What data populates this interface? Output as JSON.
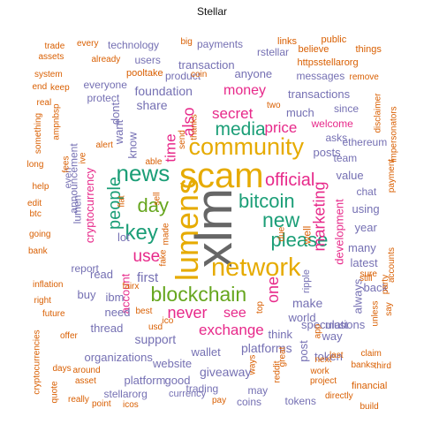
{
  "title": "Stellar",
  "colors": {
    "orange": "#d95f02",
    "green": "#66a61e",
    "purple": "#7570b3",
    "pink": "#e7298a",
    "gray": "#666666",
    "gold": "#e6ab02",
    "teal": "#1b9e77"
  },
  "words": [
    {
      "text": "xlm",
      "color": "gray"
    },
    {
      "text": "scam",
      "color": "gold"
    },
    {
      "text": "community",
      "color": "gold"
    },
    {
      "text": "lumens",
      "color": "gold"
    },
    {
      "text": "network",
      "color": "gold"
    },
    {
      "text": "blockchain",
      "color": "green"
    },
    {
      "text": "news",
      "color": "teal"
    },
    {
      "text": "please",
      "color": "teal"
    },
    {
      "text": "bitcoin",
      "color": "teal"
    },
    {
      "text": "new",
      "color": "teal"
    },
    {
      "text": "media",
      "color": "teal"
    },
    {
      "text": "day",
      "color": "green"
    },
    {
      "text": "key",
      "color": "teal"
    },
    {
      "text": "people",
      "color": "teal"
    },
    {
      "text": "exchange",
      "color": "pink"
    },
    {
      "text": "official",
      "color": "pink"
    },
    {
      "text": "marketing",
      "color": "pink"
    },
    {
      "text": "secret",
      "color": "pink"
    },
    {
      "text": "use",
      "color": "pink"
    },
    {
      "text": "never",
      "color": "pink"
    },
    {
      "text": "one",
      "color": "pink"
    },
    {
      "text": "also",
      "color": "pink"
    },
    {
      "text": "money",
      "color": "pink"
    },
    {
      "text": "price",
      "color": "pink"
    },
    {
      "text": "time",
      "color": "pink"
    },
    {
      "text": "see",
      "color": "pink"
    },
    {
      "text": "cryptocurrency",
      "color": "pink"
    },
    {
      "text": "development",
      "color": "pink"
    },
    {
      "text": "account",
      "color": "pink"
    },
    {
      "text": "make",
      "color": "purple"
    },
    {
      "text": "foundation",
      "color": "purple"
    },
    {
      "text": "transaction",
      "color": "purple"
    },
    {
      "text": "wallet",
      "color": "purple"
    },
    {
      "text": "want",
      "color": "purple"
    },
    {
      "text": "know",
      "color": "purple"
    },
    {
      "text": "first",
      "color": "purple"
    },
    {
      "text": "share",
      "color": "purple"
    },
    {
      "text": "platforms",
      "color": "purple"
    },
    {
      "text": "giveaway",
      "color": "purple"
    },
    {
      "text": "support",
      "color": "purple"
    },
    {
      "text": "posts",
      "color": "purple"
    },
    {
      "text": "value",
      "color": "purple"
    },
    {
      "text": "think",
      "color": "purple"
    },
    {
      "text": "world",
      "color": "purple"
    },
    {
      "text": "read",
      "color": "purple"
    },
    {
      "text": "anyone",
      "color": "purple"
    },
    {
      "text": "much",
      "color": "purple"
    },
    {
      "text": "website",
      "color": "purple"
    },
    {
      "text": "transactions",
      "color": "purple"
    },
    {
      "text": "organizations",
      "color": "purple"
    },
    {
      "text": "buy",
      "color": "purple"
    },
    {
      "text": "need",
      "color": "purple"
    },
    {
      "text": "ibm",
      "color": "purple"
    },
    {
      "text": "platform",
      "color": "purple"
    },
    {
      "text": "year",
      "color": "purple"
    },
    {
      "text": "many",
      "color": "purple"
    },
    {
      "text": "way",
      "color": "purple"
    },
    {
      "text": "speculations",
      "color": "purple"
    },
    {
      "text": "latest",
      "color": "purple"
    },
    {
      "text": "thread",
      "color": "purple"
    },
    {
      "text": "dont",
      "color": "purple"
    },
    {
      "text": "using",
      "color": "purple"
    },
    {
      "text": "token",
      "color": "purple"
    },
    {
      "text": "back",
      "color": "purple"
    },
    {
      "text": "must",
      "color": "purple"
    },
    {
      "text": "post",
      "color": "purple"
    },
    {
      "text": "always",
      "color": "purple"
    },
    {
      "text": "trading",
      "color": "purple"
    },
    {
      "text": "good",
      "color": "purple"
    },
    {
      "text": "lot",
      "color": "purple"
    },
    {
      "text": "payments",
      "color": "purple"
    },
    {
      "text": "technology",
      "color": "purple"
    },
    {
      "text": "users",
      "color": "purple"
    },
    {
      "text": "product",
      "color": "purple"
    },
    {
      "text": "rstellar",
      "color": "purple"
    },
    {
      "text": "messages",
      "color": "purple"
    },
    {
      "text": "since",
      "color": "purple"
    },
    {
      "text": "asks",
      "color": "purple"
    },
    {
      "text": "everyone",
      "color": "purple"
    },
    {
      "text": "chat",
      "color": "purple"
    },
    {
      "text": "lumen",
      "color": "purple"
    },
    {
      "text": "protect",
      "color": "purple"
    },
    {
      "text": "tokens",
      "color": "purple"
    },
    {
      "text": "coins",
      "color": "purple"
    },
    {
      "text": "welcome",
      "color": "pink"
    },
    {
      "text": "announcement",
      "color": "purple"
    },
    {
      "text": "report",
      "color": "purple"
    },
    {
      "text": "team",
      "color": "purple"
    },
    {
      "text": "stellarorg",
      "color": "purple"
    },
    {
      "text": "currency",
      "color": "purple"
    },
    {
      "text": "ethereum",
      "color": "purple"
    },
    {
      "text": "even",
      "color": "purple"
    },
    {
      "text": "may",
      "color": "purple"
    },
    {
      "text": "well",
      "color": "orange"
    },
    {
      "text": "ripple",
      "color": "purple"
    },
    {
      "text": "pooltake",
      "color": "orange"
    },
    {
      "text": "httpsstellarorg",
      "color": "orange"
    },
    {
      "text": "links",
      "color": "orange"
    },
    {
      "text": "believe",
      "color": "orange"
    },
    {
      "text": "public",
      "color": "orange"
    },
    {
      "text": "things",
      "color": "orange"
    },
    {
      "text": "big",
      "color": "orange"
    },
    {
      "text": "every",
      "color": "orange"
    },
    {
      "text": "trade",
      "color": "orange"
    },
    {
      "text": "assets",
      "color": "orange"
    },
    {
      "text": "already",
      "color": "orange"
    },
    {
      "text": "system",
      "color": "orange"
    },
    {
      "text": "end",
      "color": "orange"
    },
    {
      "text": "keep",
      "color": "orange"
    },
    {
      "text": "real",
      "color": "orange"
    },
    {
      "text": "ampnbsp",
      "color": "orange"
    },
    {
      "text": "something",
      "color": "orange"
    },
    {
      "text": "long",
      "color": "orange"
    },
    {
      "text": "help",
      "color": "orange"
    },
    {
      "text": "edit",
      "color": "orange"
    },
    {
      "text": "btc",
      "color": "orange"
    },
    {
      "text": "going",
      "color": "orange"
    },
    {
      "text": "bank",
      "color": "orange"
    },
    {
      "text": "inflation",
      "color": "orange"
    },
    {
      "text": "right",
      "color": "orange"
    },
    {
      "text": "future",
      "color": "orange"
    },
    {
      "text": "offer",
      "color": "orange"
    },
    {
      "text": "cryptocurrencies",
      "color": "orange"
    },
    {
      "text": "days",
      "color": "orange"
    },
    {
      "text": "around",
      "color": "orange"
    },
    {
      "text": "asset",
      "color": "orange"
    },
    {
      "text": "quote",
      "color": "orange"
    },
    {
      "text": "really",
      "color": "orange"
    },
    {
      "text": "point",
      "color": "orange"
    },
    {
      "text": "icos",
      "color": "orange"
    },
    {
      "text": "pay",
      "color": "orange"
    },
    {
      "text": "directly",
      "color": "orange"
    },
    {
      "text": "build",
      "color": "orange"
    },
    {
      "text": "financial",
      "color": "orange"
    },
    {
      "text": "banks",
      "color": "orange"
    },
    {
      "text": "third",
      "color": "orange"
    },
    {
      "text": "claim",
      "color": "orange"
    },
    {
      "text": "last",
      "color": "orange"
    },
    {
      "text": "next",
      "color": "orange"
    },
    {
      "text": "work",
      "color": "orange"
    },
    {
      "text": "project",
      "color": "orange"
    },
    {
      "text": "say",
      "color": "orange"
    },
    {
      "text": "unless",
      "color": "orange"
    },
    {
      "text": "party",
      "color": "orange"
    },
    {
      "text": "sure",
      "color": "orange"
    },
    {
      "text": "accounts",
      "color": "orange"
    },
    {
      "text": "payment",
      "color": "orange"
    },
    {
      "text": "still",
      "color": "orange"
    },
    {
      "text": "remove",
      "color": "orange"
    },
    {
      "text": "disclaimer",
      "color": "orange"
    },
    {
      "text": "impersonators",
      "color": "orange"
    },
    {
      "text": "coin",
      "color": "orange"
    },
    {
      "text": "two",
      "color": "orange"
    },
    {
      "text": "thanks",
      "color": "orange"
    },
    {
      "text": "send",
      "color": "orange"
    },
    {
      "text": "able",
      "color": "orange"
    },
    {
      "text": "alert",
      "color": "orange"
    },
    {
      "text": "ive",
      "color": "orange"
    },
    {
      "text": "fees",
      "color": "orange"
    },
    {
      "text": "sell",
      "color": "orange"
    },
    {
      "text": "flat",
      "color": "orange"
    },
    {
      "text": "made",
      "color": "orange"
    },
    {
      "text": "due",
      "color": "orange"
    },
    {
      "text": "fake",
      "color": "orange"
    },
    {
      "text": "fairx",
      "color": "orange"
    },
    {
      "text": "best",
      "color": "orange"
    },
    {
      "text": "usd",
      "color": "orange"
    },
    {
      "text": "ico",
      "color": "orange"
    },
    {
      "text": "top",
      "color": "orange"
    },
    {
      "text": "great",
      "color": "orange"
    },
    {
      "text": "reddit",
      "color": "orange"
    },
    {
      "text": "app",
      "color": "orange"
    },
    {
      "text": "ways",
      "color": "orange"
    }
  ]
}
